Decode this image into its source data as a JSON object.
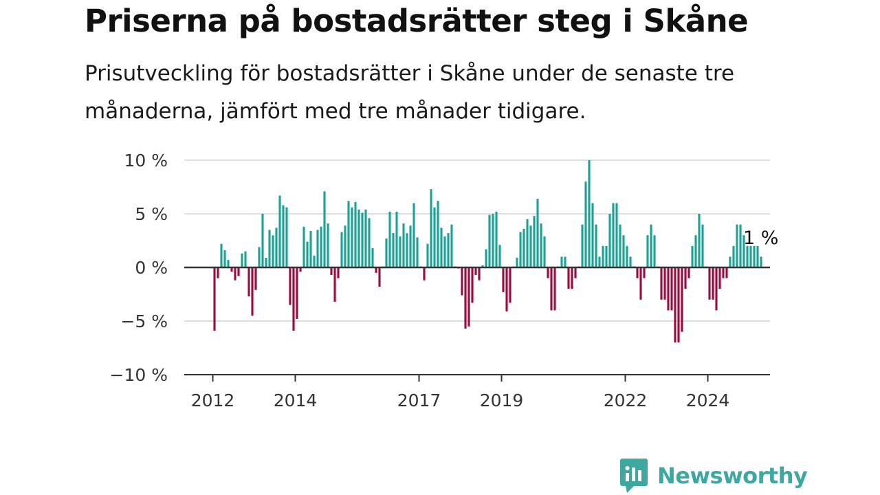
{
  "header": {
    "title": "Priserna på bostadsrätter steg i Skåne",
    "subtitle": "Prisutveckling för bostadsrätter i Skåne under de senaste tre månaderna, jämfört med tre månader tidigare."
  },
  "brand": {
    "name": "Newsworthy",
    "icon": "newsworthy-logo-icon",
    "color": "#3da8a0"
  },
  "colors": {
    "positive": "#1aa297",
    "negative": "#9b0a3f",
    "grid": "#dddddd",
    "zero_line": "#333333"
  },
  "chart_data": {
    "type": "bar",
    "unit": "%",
    "ylim": [
      -10,
      10
    ],
    "yticks": [
      10,
      5,
      0,
      -5,
      -10
    ],
    "ytick_labels": [
      "10 %",
      "5 %",
      "0 %",
      "−5 %",
      "−10 %"
    ],
    "xticks": [
      2012,
      2014,
      2017,
      2019,
      2022,
      2024
    ],
    "xtick_labels": [
      "2012",
      "2014",
      "2017",
      "2019",
      "2022",
      "2024"
    ],
    "x_range": [
      2011.0,
      2025.2
    ],
    "start_year": 2012,
    "grid": true,
    "annotation": "1 %",
    "values": [
      -5.9,
      -1.0,
      2.2,
      1.6,
      0.7,
      -0.4,
      -1.2,
      -0.8,
      1.3,
      1.5,
      -2.7,
      -4.5,
      -2.1,
      1.9,
      5.0,
      0.9,
      3.5,
      3.0,
      3.7,
      6.7,
      5.8,
      5.6,
      -3.5,
      -5.9,
      -4.8,
      -0.4,
      3.8,
      2.4,
      3.4,
      1.1,
      3.5,
      3.8,
      7.1,
      4.1,
      -0.7,
      -3.2,
      -1.0,
      3.3,
      3.9,
      6.2,
      5.6,
      6.1,
      5.4,
      5.1,
      5.4,
      4.6,
      1.8,
      -0.5,
      -1.8,
      0.1,
      2.7,
      5.2,
      3.2,
      5.2,
      2.9,
      4.1,
      3.2,
      3.9,
      6.0,
      2.8,
      0.1,
      -1.2,
      2.2,
      7.3,
      5.6,
      6.2,
      3.7,
      2.9,
      3.2,
      4.0,
      0.1,
      -0.1,
      -2.6,
      -5.7,
      -5.5,
      -3.3,
      -0.7,
      -1.2,
      0.2,
      1.7,
      4.9,
      5.0,
      5.2,
      2.1,
      -2.3,
      -4.1,
      -3.3,
      0.1,
      0.9,
      3.3,
      3.6,
      4.5,
      3.9,
      4.8,
      6.4,
      4.1,
      2.9,
      -1.0,
      -4.0,
      -4.0,
      0.1,
      1.0,
      1.0,
      -2.0,
      -2.0,
      -1.0,
      0.1,
      4.0,
      8.0,
      10.0,
      6.0,
      4.0,
      1.0,
      2.0,
      2.0,
      5.0,
      6.0,
      6.0,
      4.0,
      3.0,
      2.0,
      1.0,
      0.1,
      -1.0,
      -3.0,
      -1.0,
      3.0,
      4.0,
      3.0,
      0.1,
      -3.0,
      -3.0,
      -4.0,
      -4.0,
      -7.0,
      -7.0,
      -6.0,
      -2.0,
      -1.0,
      2.0,
      3.0,
      5.0,
      4.0,
      0.1,
      -3.0,
      -3.0,
      -4.0,
      -2.0,
      -1.0,
      -1.0,
      1.0,
      2.0,
      4.0,
      4.0,
      3.0,
      2.0,
      2.0,
      2.0,
      2.0,
      1.0
    ]
  }
}
